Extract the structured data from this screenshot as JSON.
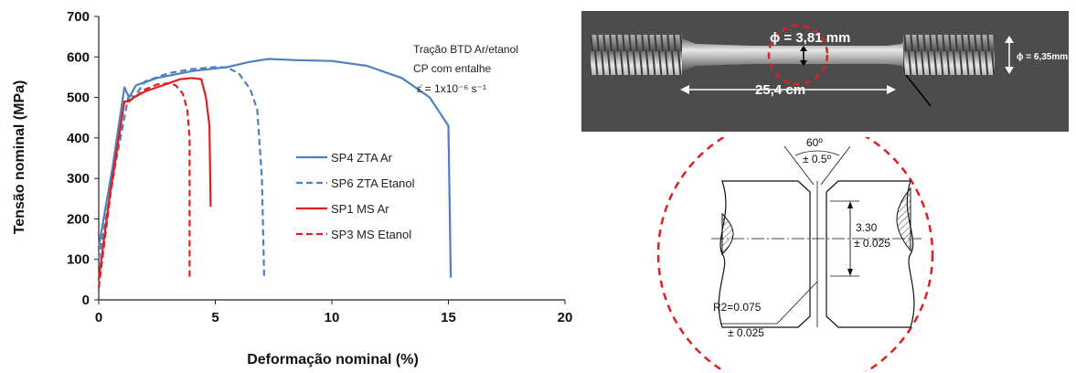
{
  "chart_data": {
    "type": "line",
    "xlabel": "Deformação nominal (%)",
    "ylabel": "Tensão nominal  (MPa)",
    "xlim": [
      0,
      20
    ],
    "ylim": [
      0,
      700
    ],
    "xticks": [
      "0",
      "5",
      "10",
      "15",
      "20"
    ],
    "yticks": [
      "0",
      "100",
      "200",
      "300",
      "400",
      "500",
      "600",
      "700"
    ],
    "grid": false,
    "legend_position": "center-right",
    "annotation": {
      "line1": "Tração BTD Ar/etanol",
      "line2": "CP com entalhe",
      "line3": "ε̇  = 1x10⁻⁶ s⁻¹"
    },
    "series": [
      {
        "name": "SP4 ZTA Ar",
        "color": "#4f81bd",
        "dash": "solid",
        "points": [
          [
            0,
            130
          ],
          [
            0.6,
            330
          ],
          [
            1.1,
            525
          ],
          [
            1.3,
            500
          ],
          [
            1.6,
            530
          ],
          [
            2.5,
            548
          ],
          [
            4,
            565
          ],
          [
            5.5,
            575
          ],
          [
            6.5,
            588
          ],
          [
            7.3,
            595
          ],
          [
            8.5,
            592
          ],
          [
            10,
            590
          ],
          [
            11.5,
            578
          ],
          [
            13,
            548
          ],
          [
            14.2,
            500
          ],
          [
            15,
            430
          ],
          [
            15.1,
            55
          ]
        ]
      },
      {
        "name": "SP6 ZTA Etanol",
        "color": "#4f81bd",
        "dash": "dashed",
        "points": [
          [
            0,
            100
          ],
          [
            0.7,
            330
          ],
          [
            1.3,
            510
          ],
          [
            1.5,
            500
          ],
          [
            2,
            540
          ],
          [
            3,
            560
          ],
          [
            4,
            570
          ],
          [
            5,
            575
          ],
          [
            5.5,
            574
          ],
          [
            6,
            560
          ],
          [
            6.5,
            520
          ],
          [
            6.8,
            470
          ],
          [
            7,
            300
          ],
          [
            7.1,
            50
          ]
        ]
      },
      {
        "name": "SP1  MS Ar",
        "color": "#e02020",
        "dash": "solid",
        "points": [
          [
            0,
            50
          ],
          [
            0.5,
            270
          ],
          [
            1.1,
            490
          ],
          [
            1.3,
            490
          ],
          [
            1.5,
            500
          ],
          [
            2,
            515
          ],
          [
            2.5,
            525
          ],
          [
            3,
            535
          ],
          [
            3.5,
            545
          ],
          [
            4,
            548
          ],
          [
            4.4,
            545
          ],
          [
            4.6,
            500
          ],
          [
            4.75,
            430
          ],
          [
            4.8,
            230
          ]
        ]
      },
      {
        "name": "SP3 MS Etanol",
        "color": "#e02020",
        "dash": "dashed",
        "points": [
          [
            0,
            30
          ],
          [
            0.5,
            260
          ],
          [
            1.1,
            490
          ],
          [
            1.4,
            495
          ],
          [
            2,
            520
          ],
          [
            2.5,
            532
          ],
          [
            3,
            535
          ],
          [
            3.3,
            530
          ],
          [
            3.6,
            510
          ],
          [
            3.8,
            470
          ],
          [
            3.9,
            400
          ],
          [
            3.9,
            50
          ]
        ]
      }
    ]
  },
  "photo": {
    "diameter_label": "ϕ = 3,81 mm",
    "outer_diameter_label": "ϕ = 6,35mm",
    "length_label": "25,4 cm"
  },
  "drawing": {
    "angle_label": "60º",
    "angle_tol_label": "± 0.5º",
    "dim_label": "3.30",
    "dim_tol_label": "± 0.025",
    "radius_label": "R2=0.075",
    "radius_tol_label": "± 0.025"
  }
}
